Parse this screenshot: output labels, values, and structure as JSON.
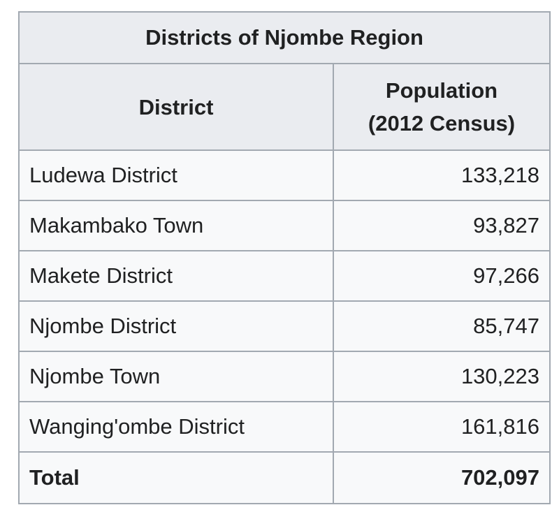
{
  "table": {
    "caption": "Districts of Njombe Region",
    "headers": {
      "district": "District",
      "population_line1": "Population",
      "population_line2": "(2012 Census)"
    },
    "rows": [
      {
        "district": "Ludewa District",
        "population": "133,218"
      },
      {
        "district": "Makambako Town",
        "population": "93,827"
      },
      {
        "district": "Makete District",
        "population": "97,266"
      },
      {
        "district": "Njombe District",
        "population": "85,747"
      },
      {
        "district": "Njombe Town",
        "population": "130,223"
      },
      {
        "district": "Wanging'ombe District",
        "population": "161,816"
      }
    ],
    "total": {
      "label": "Total",
      "population": "702,097"
    }
  }
}
